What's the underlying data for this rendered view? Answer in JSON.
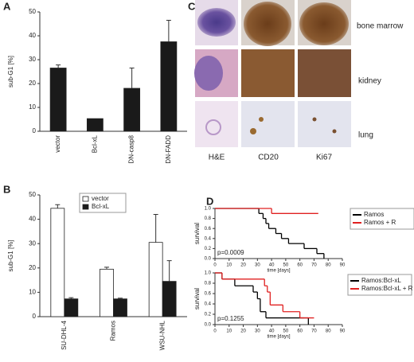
{
  "panel_labels": [
    "A",
    "B",
    "C",
    "D"
  ],
  "histology": {
    "columns": [
      "H&E",
      "CD20",
      "Ki67"
    ],
    "rows": [
      "bone marrow",
      "kidney",
      "lung"
    ]
  },
  "chart_data": [
    {
      "type": "bar",
      "ylabel": "sub-G1 [%]",
      "categories": [
        "vector",
        "Bcl-xL",
        "DN-casp8",
        "DN-FADD"
      ],
      "values": [
        26.5,
        5.3,
        18,
        37.5
      ],
      "errors": [
        1.3,
        null,
        8.5,
        9
      ],
      "color": "#1a1a1a",
      "ylim": [
        0,
        50
      ],
      "yticks": [
        0,
        10,
        20,
        30,
        40,
        50
      ]
    },
    {
      "type": "bar",
      "ylabel": "sub-G1 [%]",
      "categories": [
        "SU-DHL-4",
        "Ramos",
        "WSU-NHL"
      ],
      "series": [
        {
          "name": "vector",
          "color": "#ffffff",
          "values": [
            44.5,
            19.5,
            30.5
          ],
          "errors": [
            1.5,
            0.8,
            11.5
          ]
        },
        {
          "name": "Bcl-xL",
          "color": "#1a1a1a",
          "values": [
            7.3,
            7.3,
            14.5
          ],
          "errors": [
            0.5,
            0.3,
            8.5
          ]
        }
      ],
      "ylim": [
        0,
        50
      ],
      "yticks": [
        0,
        10,
        20,
        30,
        40,
        50
      ]
    },
    {
      "type": "step",
      "ylabel": "survival",
      "xlabel": "time [days]",
      "annotation": "p=0.0009",
      "series": [
        {
          "name": "Ramos",
          "color": "#000000",
          "x": [
            0,
            31,
            34,
            36,
            38,
            43,
            47,
            52,
            63,
            72,
            77
          ],
          "values": [
            1,
            0.9,
            0.8,
            0.7,
            0.6,
            0.5,
            0.4,
            0.3,
            0.2,
            0.1,
            0
          ]
        },
        {
          "name": "Ramos + R",
          "color": "#e02020",
          "x": [
            0,
            40,
            73
          ],
          "values": [
            1,
            0.9,
            0.9
          ]
        }
      ],
      "xlim": [
        0,
        90
      ],
      "xticks": [
        0,
        10,
        20,
        30,
        40,
        50,
        60,
        70,
        80,
        90
      ],
      "ylim": [
        0,
        1
      ],
      "yticks": [
        {
          "value": 0,
          "label": "0.0"
        },
        0.2,
        0.4,
        0.6,
        0.8,
        {
          "value": 1,
          "label": "1.0"
        }
      ]
    },
    {
      "type": "step",
      "ylabel": "survival",
      "xlabel": "time [days]",
      "annotation": "p=0.1255",
      "series": [
        {
          "name": "Ramos:Bcl-xL",
          "color": "#000000",
          "x": [
            0,
            5,
            14,
            27,
            30,
            32,
            36,
            63,
            66
          ],
          "values": [
            1,
            0.88,
            0.75,
            0.63,
            0.5,
            0.25,
            0.13,
            0.13,
            0
          ]
        },
        {
          "name": "Ramos:Bcl-xL + R",
          "color": "#e02020",
          "x": [
            0,
            5,
            35,
            37,
            39,
            48,
            60,
            70
          ],
          "values": [
            1,
            0.88,
            0.75,
            0.63,
            0.38,
            0.25,
            0.13,
            0.13
          ]
        }
      ],
      "xlim": [
        0,
        90
      ],
      "xticks": [
        0,
        10,
        20,
        30,
        40,
        50,
        60,
        70,
        80,
        90
      ],
      "ylim": [
        0,
        1
      ],
      "yticks": [
        {
          "value": 0,
          "label": "0.0"
        },
        0.2,
        0.4,
        0.6,
        0.8,
        {
          "value": 1,
          "label": "1.0"
        }
      ]
    }
  ]
}
